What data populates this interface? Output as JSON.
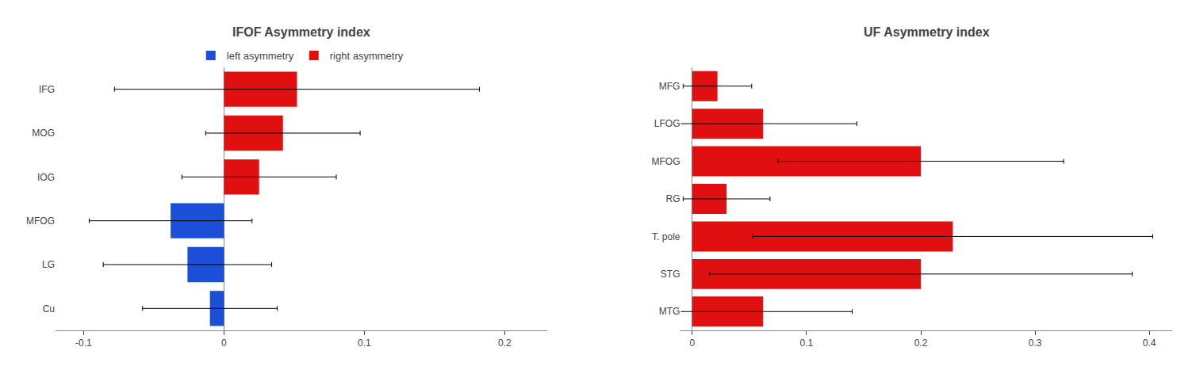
{
  "chart_data": [
    {
      "type": "bar",
      "title": "IFOF Asymmetry index",
      "orientation": "horizontal",
      "categories": [
        "IFG",
        "MOG",
        "IOG",
        "MFOG",
        "LG",
        "Cu"
      ],
      "series": [
        {
          "name": "left asymmetry",
          "color": "#1b4fd8",
          "values": [
            null,
            null,
            null,
            -0.038,
            -0.026,
            -0.01
          ],
          "errors": [
            null,
            null,
            null,
            0.058,
            0.06,
            0.048
          ]
        },
        {
          "name": "right asymmetry",
          "color": "#e01010",
          "values": [
            0.052,
            0.042,
            0.025,
            null,
            null,
            null
          ],
          "errors": [
            0.13,
            0.055,
            0.055,
            null,
            null,
            null
          ]
        }
      ],
      "xlim": [
        -0.12,
        0.23
      ],
      "xticks": [
        -0.1,
        0,
        0.1,
        0.2
      ],
      "grid": false,
      "legend": "top"
    },
    {
      "type": "bar",
      "title": "UF Asymmetry index",
      "orientation": "horizontal",
      "categories": [
        "MFG",
        "LFOG",
        "MFOG",
        "RG",
        "T. pole",
        "STG",
        "MTG"
      ],
      "values": [
        0.022,
        0.062,
        0.2,
        0.03,
        0.228,
        0.2,
        0.062
      ],
      "errors": [
        0.03,
        0.082,
        0.125,
        0.038,
        0.175,
        0.185,
        0.078
      ],
      "color": "#e01010",
      "xlim": [
        -0.01,
        0.42
      ],
      "xticks": [
        0,
        0.1,
        0.2,
        0.3,
        0.4
      ],
      "grid": false
    }
  ]
}
